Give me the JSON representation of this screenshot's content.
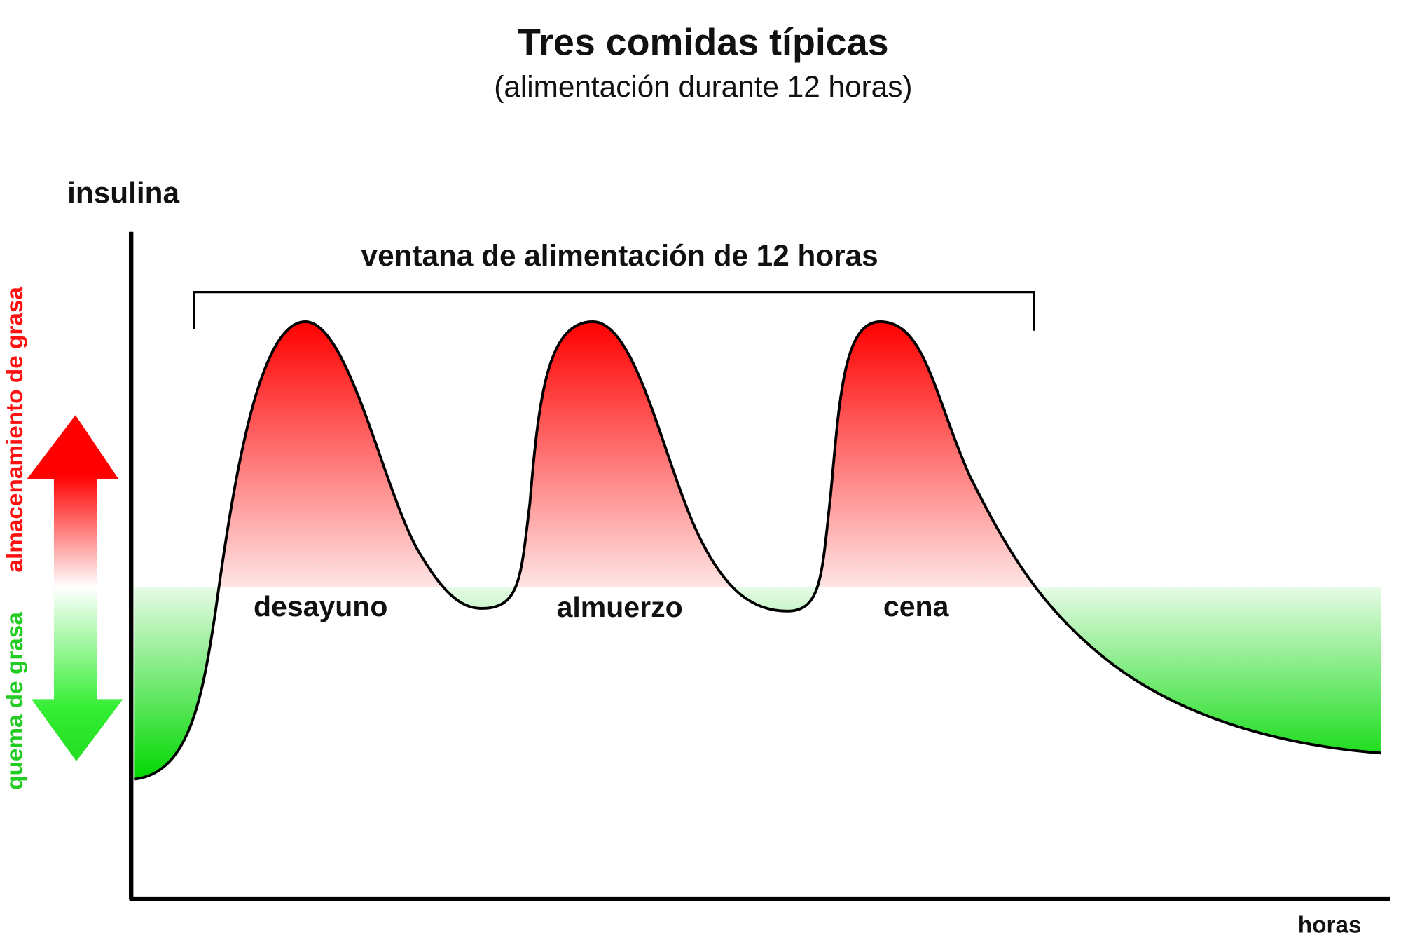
{
  "header": {
    "title": "Tres comidas típicas",
    "subtitle": "(alimentación durante 12 horas)"
  },
  "axes": {
    "y_label": "insulina",
    "x_label": "horas"
  },
  "window_label": "ventana de alimentación de 12 horas",
  "meals": [
    "desayuno",
    "almuerzo",
    "cena"
  ],
  "side_labels": {
    "storage": "almacenamiento de grasa",
    "burning": "quema de grasa"
  }
}
